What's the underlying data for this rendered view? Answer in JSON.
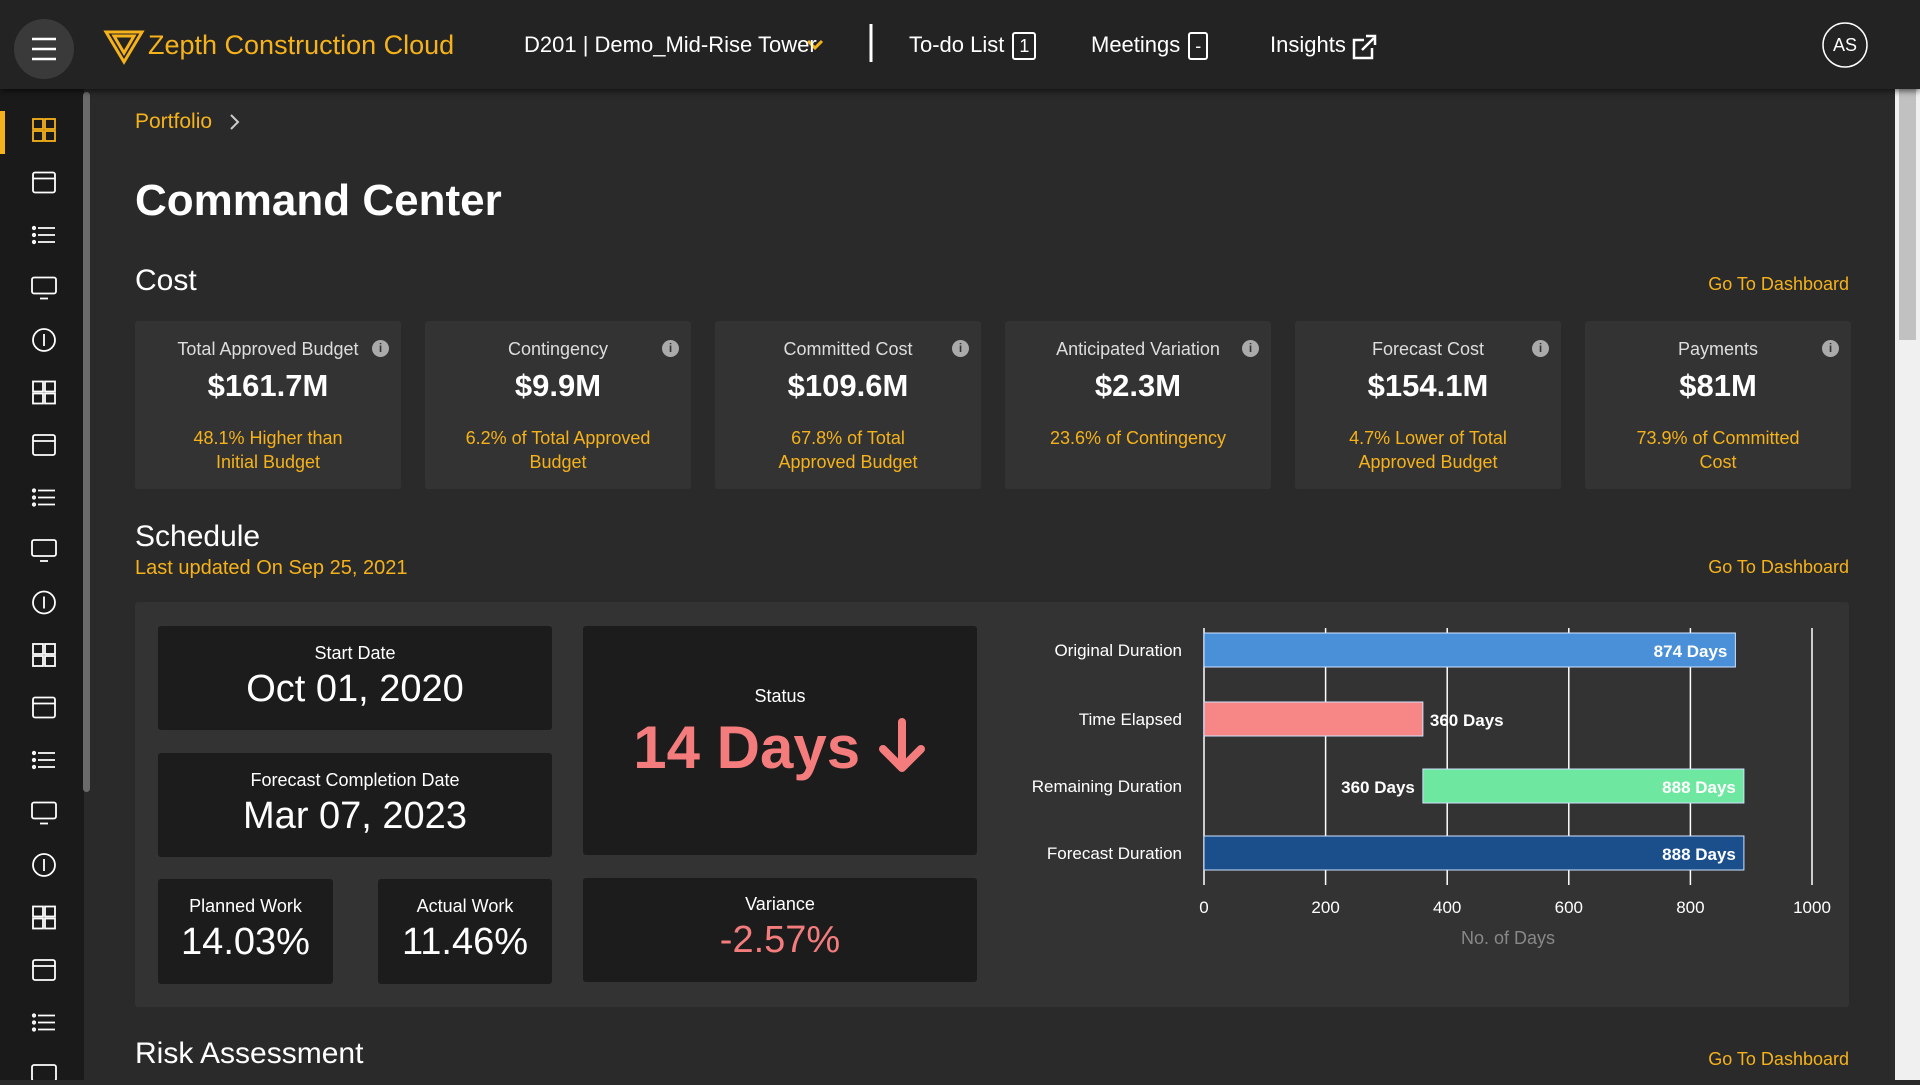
{
  "header": {
    "app_name": "Zepth Construction Cloud",
    "project": "D201 | Demo_Mid-Rise Tower",
    "nav": [
      {
        "label": "To-do List",
        "badge": "1"
      },
      {
        "label": "Meetings",
        "badge": "-"
      },
      {
        "label": "Insights"
      }
    ],
    "avatar": "AS"
  },
  "breadcrumb": [
    "Portfolio"
  ],
  "page_title": "Command Center",
  "cost": {
    "title": "Cost",
    "link": "Go To Dashboard",
    "cards": [
      {
        "label": "Total Approved Budget",
        "value": "$161.7M",
        "note": "48.1% Higher than Initial Budget"
      },
      {
        "label": "Contingency",
        "value": "$9.9M",
        "note": "6.2% of Total Approved Budget"
      },
      {
        "label": "Committed Cost",
        "value": "$109.6M",
        "note": "67.8% of Total Approved Budget"
      },
      {
        "label": "Anticipated Variation",
        "value": "$2.3M",
        "note": "23.6% of Contingency"
      },
      {
        "label": "Forecast Cost",
        "value": "$154.1M",
        "note": "4.7% Lower of Total Approved Budget"
      },
      {
        "label": "Payments",
        "value": "$81M",
        "note": "73.9% of Committed Cost"
      }
    ]
  },
  "schedule": {
    "title": "Schedule",
    "updated": "Last updated On Sep 25, 2021",
    "link": "Go To Dashboard",
    "start_date": {
      "label": "Start Date",
      "value": "Oct 01, 2020"
    },
    "forecast_completion": {
      "label": "Forecast Completion Date",
      "value": "Mar 07, 2023"
    },
    "planned_work": {
      "label": "Planned Work",
      "value": "14.03%"
    },
    "actual_work": {
      "label": "Actual Work",
      "value": "11.46%"
    },
    "status": {
      "label": "Status",
      "value": "14 Days"
    },
    "variance": {
      "label": "Variance",
      "value": "-2.57%"
    }
  },
  "chart_data": {
    "type": "bar",
    "orientation": "horizontal",
    "x_label": "No. of Days",
    "xlim": [
      0,
      1000
    ],
    "xticks": [
      0,
      200,
      400,
      600,
      800,
      1000
    ],
    "grid": true,
    "bars": [
      {
        "category": "Original Duration",
        "start": 0,
        "end": 874,
        "label": "874 Days",
        "color": "#4a90d9",
        "label_inside": true
      },
      {
        "category": "Time Elapsed",
        "start": 0,
        "end": 360,
        "label": "360 Days",
        "color": "#f78686",
        "label_inside": false
      },
      {
        "category": "Remaining Duration",
        "start": 360,
        "end": 888,
        "start_label": "360 Days",
        "label": "888 Days",
        "color": "#6ee7a0",
        "label_inside": true
      },
      {
        "category": "Forecast Duration",
        "start": 0,
        "end": 888,
        "label": "888 Days",
        "color": "#1a4f8c",
        "label_inside": true
      }
    ]
  },
  "risk": {
    "title": "Risk Assessment",
    "link": "Go To Dashboard"
  }
}
